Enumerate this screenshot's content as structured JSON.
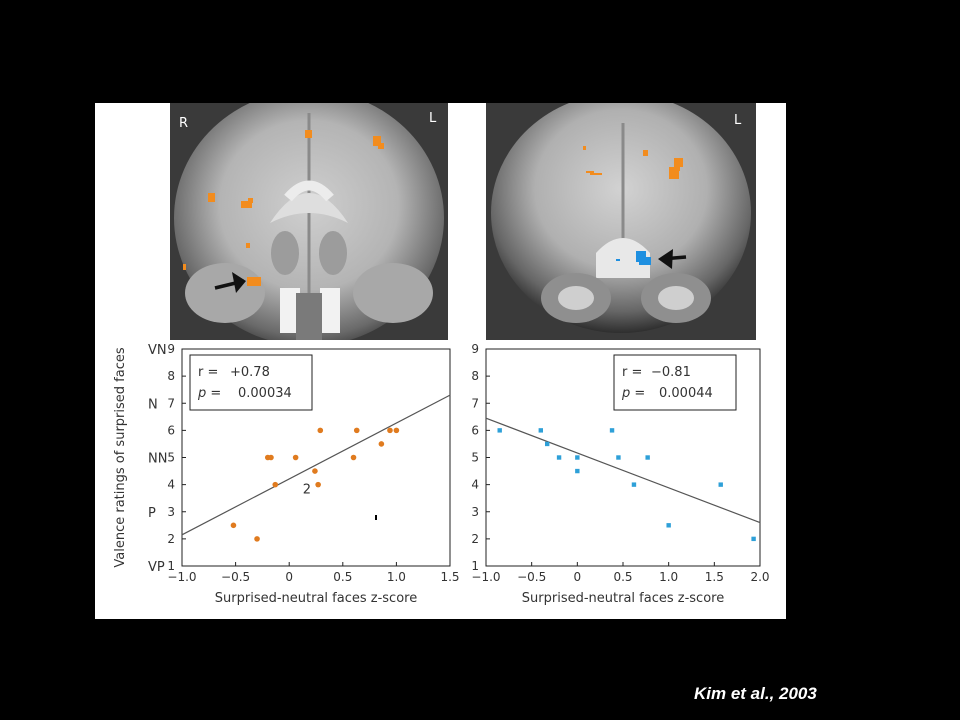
{
  "chart_data": [
    {
      "type": "scatter",
      "title": "",
      "xlabel": "Surprised-neutral faces z-score",
      "ylabel": "Valence ratings of surprised faces",
      "xlim": [
        -1.0,
        1.5
      ],
      "ylim": [
        1,
        9
      ],
      "xticks": [
        "−1.0",
        "−0.5",
        "0",
        "0.5",
        "1.0",
        "1.5"
      ],
      "xtick_values": [
        -1.0,
        -0.5,
        0,
        0.5,
        1.0,
        1.5
      ],
      "yticks": [
        "1",
        "2",
        "3",
        "4",
        "5",
        "6",
        "7",
        "8",
        "9"
      ],
      "y_category_labels": [
        {
          "label": "VN",
          "y": 9
        },
        {
          "label": "N",
          "y": 7
        },
        {
          "label": "NN",
          "y": 5
        },
        {
          "label": "P",
          "y": 3
        },
        {
          "label": "VP",
          "y": 1
        }
      ],
      "stats": {
        "r_label": "r =",
        "r_value": "+0.78",
        "p_label": "p =",
        "p_value": "0.00034"
      },
      "annotation": {
        "text": "2",
        "x": 0.07,
        "y": 3.9
      },
      "color": "#e07b1f",
      "points": [
        {
          "x": -0.52,
          "y": 2.5
        },
        {
          "x": -0.3,
          "y": 2.0
        },
        {
          "x": -0.2,
          "y": 5.0
        },
        {
          "x": -0.17,
          "y": 5.0
        },
        {
          "x": -0.13,
          "y": 4.0
        },
        {
          "x": 0.06,
          "y": 5.0
        },
        {
          "x": 0.24,
          "y": 4.5
        },
        {
          "x": 0.27,
          "y": 4.0
        },
        {
          "x": 0.29,
          "y": 6.0
        },
        {
          "x": 0.6,
          "y": 5.0
        },
        {
          "x": 0.63,
          "y": 6.0
        },
        {
          "x": 0.86,
          "y": 5.5
        },
        {
          "x": 0.94,
          "y": 6.0
        },
        {
          "x": 1.0,
          "y": 6.0
        }
      ],
      "fit_line": {
        "x": [
          -1.0,
          1.5
        ],
        "y": [
          2.15,
          7.3
        ]
      },
      "grid": false,
      "legend": "none"
    },
    {
      "type": "scatter",
      "title": "",
      "xlabel": "Surprised-neutral faces z-score",
      "ylabel": "",
      "xlim": [
        -1.0,
        2.0
      ],
      "ylim": [
        1,
        9
      ],
      "xticks": [
        "−1.0",
        "−0.5",
        "0",
        "0.5",
        "1.0",
        "1.5",
        "2.0"
      ],
      "xtick_values": [
        -1.0,
        -0.5,
        0,
        0.5,
        1.0,
        1.5,
        2.0
      ],
      "yticks": [
        "1",
        "2",
        "3",
        "4",
        "5",
        "6",
        "7",
        "8",
        "9"
      ],
      "stats": {
        "r_label": "r =",
        "r_value": "−0.81",
        "p_label": "p =",
        "p_value": "0.00044"
      },
      "color": "#2ea0d8",
      "points": [
        {
          "x": -0.85,
          "y": 6.0
        },
        {
          "x": -0.4,
          "y": 6.0
        },
        {
          "x": -0.33,
          "y": 5.5
        },
        {
          "x": -0.2,
          "y": 5.0
        },
        {
          "x": 0.0,
          "y": 5.0
        },
        {
          "x": 0.0,
          "y": 4.5
        },
        {
          "x": 0.38,
          "y": 6.0
        },
        {
          "x": 0.45,
          "y": 5.0
        },
        {
          "x": 0.62,
          "y": 4.0
        },
        {
          "x": 0.77,
          "y": 5.0
        },
        {
          "x": 1.0,
          "y": 2.5
        },
        {
          "x": 1.57,
          "y": 4.0
        },
        {
          "x": 1.93,
          "y": 2.0
        }
      ],
      "fit_line": {
        "x": [
          -1.0,
          2.0
        ],
        "y": [
          6.45,
          2.6
        ]
      },
      "grid": false,
      "legend": "none"
    }
  ],
  "brain_labels": {
    "left_r": "R",
    "left_l": "L",
    "right_l": "L"
  },
  "credit": "Kim et al., 2003",
  "colors": {
    "background": "#000000",
    "panel": "#ffffff",
    "activation_positive": "#f28c1e",
    "activation_negative": "#1e8fe0",
    "axis": "#222222"
  }
}
